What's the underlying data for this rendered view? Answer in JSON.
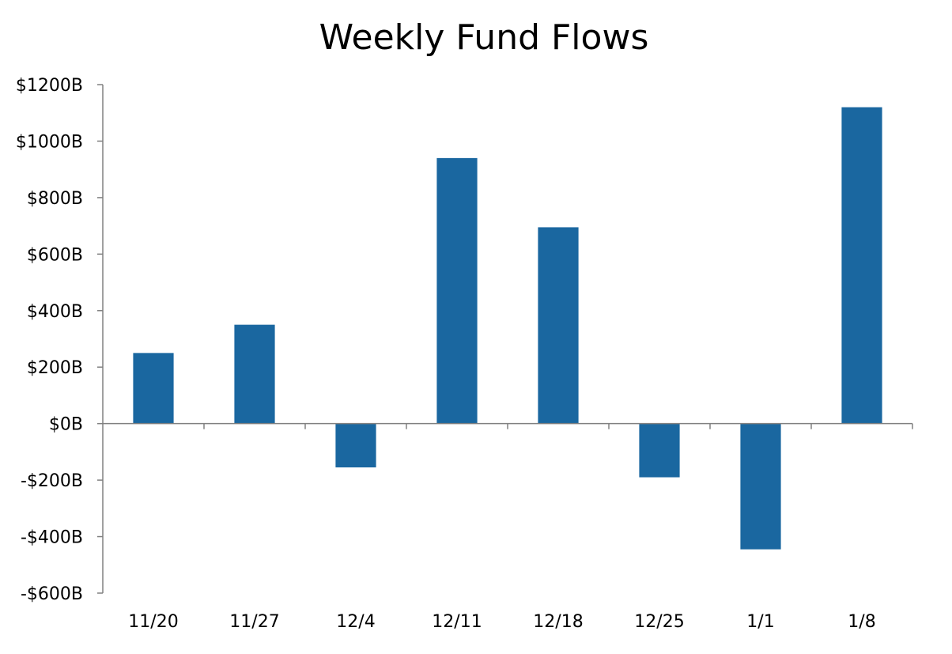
{
  "chart_data": {
    "type": "bar",
    "title": "Weekly Fund Flows",
    "xlabel": "",
    "ylabel": "",
    "categories": [
      "11/20",
      "11/27",
      "12/4",
      "12/11",
      "12/18",
      "12/25",
      "1/1",
      "1/8"
    ],
    "series": [
      {
        "values": [
          250,
          350,
          -155,
          940,
          695,
          -190,
          -445,
          1120
        ],
        "color": "#1a67a0"
      }
    ],
    "ylim": [
      -600,
      1200
    ],
    "yticks": [
      -600,
      -400,
      -200,
      0,
      200,
      400,
      600,
      800,
      1000,
      1200
    ],
    "ytick_labels": [
      "-$600B",
      "-$400B",
      "-$200B",
      "$0B",
      "$200B",
      "$400B",
      "$600B",
      "$800B",
      "$1000B",
      "$1200B"
    ],
    "grid": false,
    "legend": "none",
    "colors": {
      "bar": "#1a67a0",
      "axis": "#808080",
      "text": "#000000"
    }
  }
}
